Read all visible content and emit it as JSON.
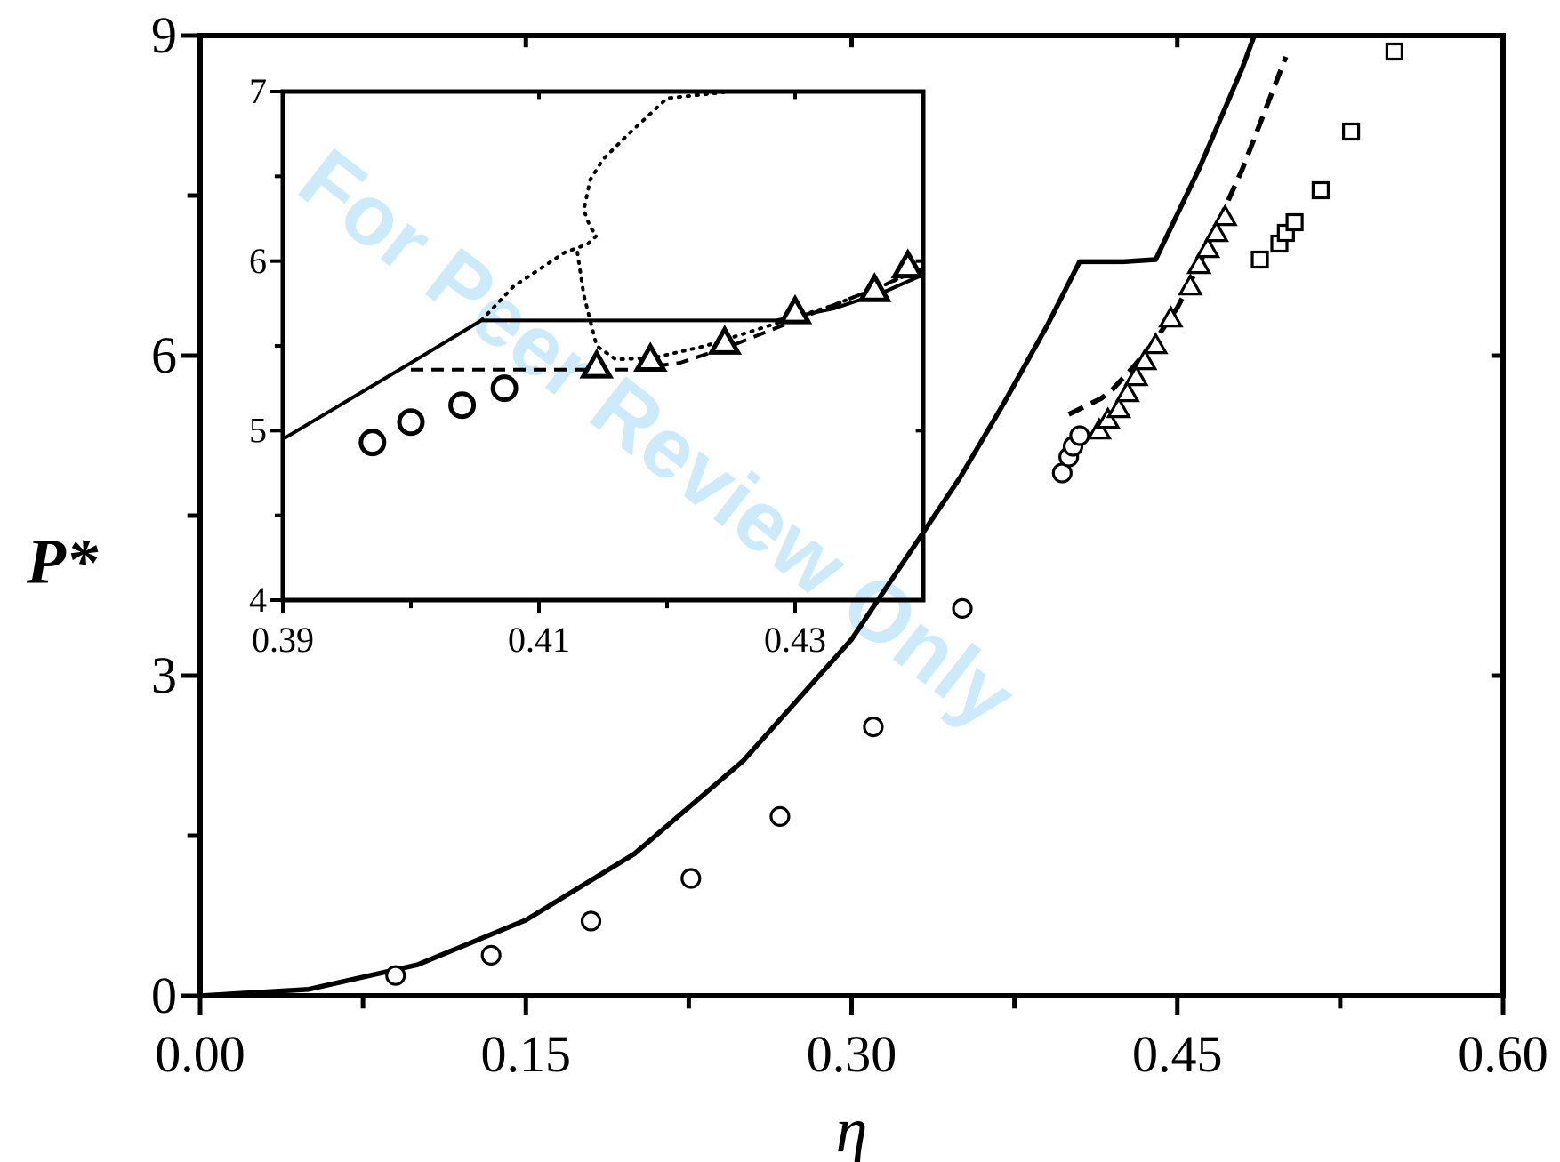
{
  "watermark": "For Peer Review Only",
  "chart_data": [
    {
      "id": "main",
      "type": "scatter",
      "xlabel": "η",
      "ylabel": "P*",
      "xlim": [
        0.0,
        0.6
      ],
      "ylim": [
        0,
        9
      ],
      "xticks": [
        {
          "value": 0.0,
          "label": "0.00"
        },
        {
          "value": 0.15,
          "label": "0.15"
        },
        {
          "value": 0.3,
          "label": "0.30"
        },
        {
          "value": 0.45,
          "label": "0.45"
        },
        {
          "value": 0.6,
          "label": "0.60"
        }
      ],
      "xminor": [
        0.075,
        0.225,
        0.375,
        0.525
      ],
      "yticks": [
        {
          "value": 0,
          "label": "0"
        },
        {
          "value": 3,
          "label": "3"
        },
        {
          "value": 6,
          "label": "6"
        },
        {
          "value": 9,
          "label": "9"
        }
      ],
      "yminor": [
        1.5,
        4.5,
        7.5
      ],
      "series": [
        {
          "style": "solid",
          "kind": "line",
          "x": [
            0.0,
            0.05,
            0.1,
            0.15,
            0.2,
            0.25,
            0.3,
            0.35,
            0.37,
            0.39,
            0.405,
            0.425,
            0.44,
            0.46,
            0.48,
            0.49,
            0.5
          ],
          "y": [
            0.0,
            0.061,
            0.29,
            0.71,
            1.33,
            2.2,
            3.34,
            4.86,
            5.55,
            6.28,
            6.88,
            6.88,
            6.9,
            7.75,
            8.7,
            9.25,
            9.85
          ]
        },
        {
          "style": "dashed",
          "kind": "line",
          "x": [
            0.4,
            0.405,
            0.41,
            0.415,
            0.42,
            0.43,
            0.44,
            0.45,
            0.46,
            0.47,
            0.48,
            0.5
          ],
          "y": [
            5.45,
            5.5,
            5.55,
            5.6,
            5.68,
            5.9,
            6.15,
            6.45,
            6.85,
            7.3,
            7.75,
            8.8
          ]
        },
        {
          "marker": "circle",
          "kind": "points",
          "x": [
            0.09,
            0.134,
            0.18,
            0.226,
            0.267,
            0.31,
            0.351,
            0.397,
            0.4,
            0.402,
            0.405
          ],
          "y": [
            0.19,
            0.38,
            0.7,
            1.1,
            1.68,
            2.52,
            3.63,
            4.9,
            5.05,
            5.15,
            5.25
          ]
        },
        {
          "marker": "triangle",
          "kind": "points",
          "x": [
            0.414,
            0.418,
            0.423,
            0.427,
            0.431,
            0.435,
            0.44,
            0.447,
            0.456,
            0.46,
            0.464,
            0.468,
            0.472
          ],
          "y": [
            5.3,
            5.4,
            5.5,
            5.65,
            5.8,
            5.95,
            6.1,
            6.35,
            6.65,
            6.85,
            7.0,
            7.15,
            7.3
          ]
        },
        {
          "marker": "square",
          "kind": "points",
          "x": [
            0.488,
            0.497,
            0.5,
            0.504,
            0.516,
            0.53,
            0.55
          ],
          "y": [
            6.9,
            7.05,
            7.15,
            7.25,
            7.55,
            8.1,
            8.85
          ]
        }
      ]
    },
    {
      "id": "inset",
      "type": "scatter",
      "xlim": [
        0.39,
        0.44
      ],
      "ylim": [
        4,
        7
      ],
      "xticks": [
        {
          "value": 0.39,
          "label": "0.39"
        },
        {
          "value": 0.41,
          "label": "0.41"
        },
        {
          "value": 0.43,
          "label": "0.43"
        }
      ],
      "xminor": [
        0.4,
        0.42
      ],
      "yticks": [
        {
          "value": 4,
          "label": "4"
        },
        {
          "value": 5,
          "label": "5"
        },
        {
          "value": 6,
          "label": "6"
        },
        {
          "value": 7,
          "label": "7"
        }
      ],
      "yminor": [
        4.5,
        5.5,
        6.5
      ],
      "series": [
        {
          "style": "solid",
          "kind": "line",
          "x": [
            0.39,
            0.4,
            0.4055,
            0.4285,
            0.433,
            0.437,
            0.44
          ],
          "y": [
            4.95,
            5.4,
            5.65,
            5.65,
            5.72,
            5.82,
            5.92
          ]
        },
        {
          "style": "dashed",
          "kind": "line",
          "x": [
            0.4,
            0.417,
            0.421,
            0.425,
            0.429,
            0.433,
            0.437,
            0.44
          ],
          "y": [
            5.36,
            5.36,
            5.4,
            5.5,
            5.62,
            5.74,
            5.86,
            5.97
          ]
        },
        {
          "style": "dotted",
          "kind": "line",
          "x": [
            0.4055,
            0.408,
            0.41,
            0.412,
            0.4138,
            0.4145,
            0.414,
            0.4135,
            0.414,
            0.415,
            0.417,
            0.42,
            0.425,
            0.43,
            0.435,
            0.44
          ],
          "y": [
            5.65,
            5.85,
            5.95,
            6.05,
            6.1,
            6.15,
            6.2,
            6.3,
            6.48,
            6.6,
            6.75,
            6.96,
            7.0,
            7.0,
            7.0,
            7.0
          ]
        },
        {
          "style": "dotted",
          "kind": "line",
          "x": [
            0.413,
            0.4135,
            0.4145,
            0.416,
            0.419,
            0.423,
            0.428,
            0.433,
            0.437,
            0.44
          ],
          "y": [
            6.05,
            5.8,
            5.5,
            5.42,
            5.43,
            5.5,
            5.62,
            5.74,
            5.86,
            5.96
          ]
        },
        {
          "marker": "circle",
          "kind": "points",
          "x": [
            0.397,
            0.4,
            0.404,
            0.4073
          ],
          "y": [
            4.93,
            5.05,
            5.15,
            5.25
          ]
        },
        {
          "marker": "triangle",
          "kind": "points",
          "x": [
            0.4145,
            0.4187,
            0.4245,
            0.43,
            0.4362,
            0.4388
          ],
          "y": [
            5.38,
            5.42,
            5.52,
            5.7,
            5.83,
            5.97
          ]
        }
      ]
    }
  ]
}
